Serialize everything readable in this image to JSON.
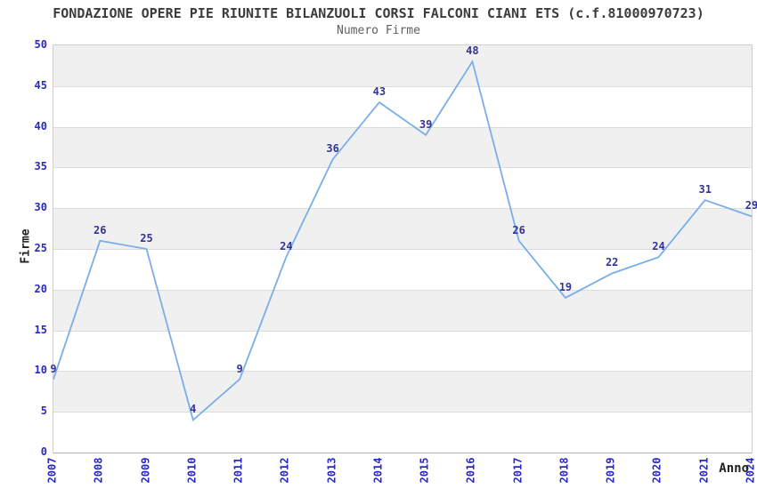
{
  "chart_data": {
    "type": "line",
    "title": "FONDAZIONE OPERE PIE RIUNITE BILANZUOLI CORSI FALCONI CIANI ETS (c.f.81000970723)",
    "subtitle": "Numero Firme",
    "xlabel": "Anno",
    "ylabel": "Firme",
    "categories": [
      "2007",
      "2008",
      "2009",
      "2010",
      "2011",
      "2012",
      "2013",
      "2014",
      "2015",
      "2016",
      "2017",
      "2018",
      "2019",
      "2020",
      "2021",
      "2024"
    ],
    "values": [
      9,
      26,
      25,
      4,
      9,
      24,
      36,
      43,
      39,
      48,
      26,
      19,
      22,
      24,
      31,
      29
    ],
    "ylim": [
      0,
      50
    ],
    "ytick_step": 5,
    "grid": "horizontal-bands",
    "legend": "none",
    "point_markers": false,
    "colors": {
      "line": "#79aee8",
      "tick_labels": "#2828c8",
      "value_labels": "#333399",
      "band": "#f0f0f0",
      "gridline": "#dcdcdc",
      "axis_frame": "#cfcfcf",
      "title": "#3c3c3c",
      "subtitle": "#5f5f5f",
      "axis_titles": "#222222"
    }
  }
}
